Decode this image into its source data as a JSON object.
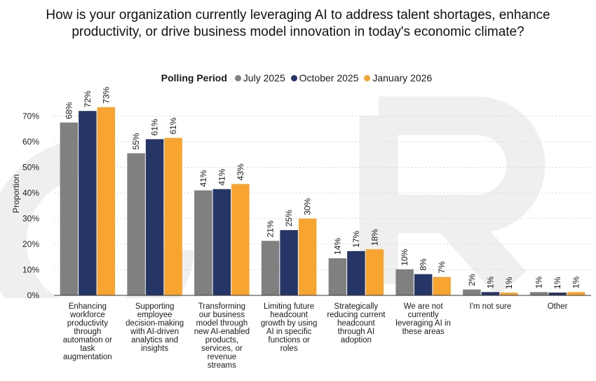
{
  "title": "How is your organization currently leveraging AI to address talent shortages, enhance productivity, or drive business model innovation in today's economic climate?",
  "legend": {
    "title": "Polling Period",
    "placement": "top-center"
  },
  "colors": {
    "July 2025": "#808080",
    "October 2025": "#253666",
    "January 2026": "#f7a530",
    "gridline": "#d9d9d9",
    "axis": "#333333",
    "watermark": "#eeeeee"
  },
  "chart_data": {
    "type": "bar",
    "ylabel": "Proportion",
    "xlabel": "",
    "ylim": [
      0,
      70
    ],
    "yticks": [
      "0%",
      "10%",
      "20%",
      "30%",
      "40%",
      "50%",
      "60%",
      "70%"
    ],
    "grid": true,
    "categories": [
      [
        "Enhancing",
        "workforce",
        "productivity",
        "through",
        "automation or",
        "task",
        "augmentation"
      ],
      [
        "Supporting",
        "employee",
        "decision-making",
        "with AI-driven",
        "analytics and",
        "insights"
      ],
      [
        "Transforming",
        "our business",
        "model through",
        "new AI-enabled",
        "products,",
        "services, or",
        "revenue",
        "streams"
      ],
      [
        "Limiting future",
        "headcount",
        "growth by using",
        "AI in specific",
        "functions or",
        "roles"
      ],
      [
        "Strategically",
        "reducing current",
        "headcount",
        "through AI",
        "adoption"
      ],
      [
        "We are not",
        "currently",
        "leveraging AI in",
        "these areas"
      ],
      [
        "I'm not sure"
      ],
      [
        "Other"
      ]
    ],
    "series": [
      {
        "name": "July 2025",
        "values": [
          67.5,
          55.5,
          41,
          21.3,
          14.5,
          10.2,
          2.3,
          1.3
        ],
        "labels": [
          "68%",
          "55%",
          "41%",
          "21%",
          "14%",
          "10%",
          "2%",
          "1%"
        ]
      },
      {
        "name": "October 2025",
        "values": [
          72,
          61,
          41.5,
          25.5,
          17.3,
          8.3,
          1.3,
          1.1
        ],
        "labels": [
          "72%",
          "61%",
          "41%",
          "25%",
          "17%",
          "8%",
          "1%",
          "1%"
        ]
      },
      {
        "name": "January 2026",
        "values": [
          73.5,
          61.5,
          43.5,
          30,
          18,
          7.2,
          1.1,
          1.3
        ],
        "labels": [
          "73%",
          "61%",
          "43%",
          "30%",
          "18%",
          "7%",
          "1%",
          "1%"
        ]
      }
    ]
  }
}
